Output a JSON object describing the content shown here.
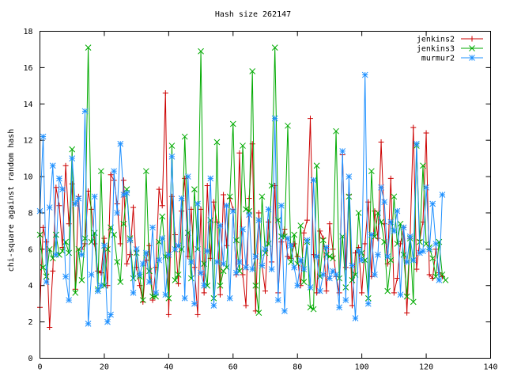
{
  "chart_data": {
    "type": "line",
    "title": "Hash size 262147",
    "xlabel": "",
    "ylabel": "chi-square against random hash",
    "xlim": [
      0,
      140
    ],
    "ylim": [
      0,
      18
    ],
    "xticks": [
      "0",
      "20",
      "40",
      "60",
      "80",
      "100",
      "120",
      "140"
    ],
    "yticks": [
      "0",
      "2",
      "4",
      "6",
      "8",
      "10",
      "12",
      "14",
      "16",
      "18"
    ],
    "grid": false,
    "legend_position": "top-right",
    "series": [
      {
        "name": "jenkins2",
        "color": "#cc0000",
        "marker": "plus",
        "values": [
          2.8,
          7.2,
          6.4,
          1.7,
          4.8,
          9.4,
          8.4,
          6.1,
          10.6,
          7.4,
          9.6,
          3.8,
          8.9,
          6.0,
          6.3,
          9.2,
          8.2,
          6.3,
          4.8,
          4.7,
          6.6,
          4.0,
          10.1,
          9.8,
          8.5,
          6.3,
          9.8,
          5.2,
          5.7,
          8.3,
          5.0,
          4.0,
          3.1,
          5.4,
          6.2,
          3.2,
          5.0,
          9.3,
          8.4,
          14.6,
          2.4,
          8.9,
          6.8,
          4.1,
          8.1,
          9.9,
          5.6,
          8.2,
          5.0,
          2.4,
          8.2,
          3.6,
          9.5,
          5.5,
          8.6,
          7.5,
          3.5,
          9.0,
          6.2,
          8.8,
          8.2,
          4.6,
          11.3,
          4.6,
          2.9,
          8.8,
          11.8,
          2.6,
          8.0,
          5.1,
          3.7,
          7.5,
          5.3,
          9.5,
          3.6,
          6.4,
          7.1,
          5.6,
          5.5,
          6.3,
          5.6,
          4.0,
          6.9,
          7.6,
          13.2,
          5.7,
          3.6,
          7.0,
          6.6,
          3.7,
          7.4,
          6.0,
          4.5,
          3.6,
          11.2,
          5.0,
          9.0,
          2.9,
          5.8,
          6.1,
          3.6,
          6.3,
          8.6,
          4.5,
          8.1,
          6.6,
          11.9,
          7.4,
          5.2,
          9.9,
          3.6,
          4.4,
          6.3,
          7.2,
          2.5,
          6.6,
          12.7,
          4.9,
          6.5,
          7.5,
          12.4,
          4.6,
          4.4,
          6.0,
          4.7,
          4.5
        ]
      },
      {
        "name": "jenkins3",
        "color": "#00aa00",
        "marker": "cross",
        "values": [
          6.8,
          5.0,
          4.5,
          6.0,
          5.5,
          6.8,
          5.7,
          5.9,
          6.4,
          5.8,
          11.5,
          3.6,
          6.0,
          4.3,
          6.6,
          17.1,
          6.4,
          6.9,
          3.8,
          10.3,
          4.0,
          6.0,
          7.2,
          6.8,
          5.3,
          4.2,
          7.4,
          9.3,
          6.6,
          4.4,
          5.8,
          4.5,
          3.2,
          10.3,
          4.8,
          3.4,
          3.4,
          6.4,
          7.8,
          5.6,
          3.3,
          11.7,
          4.3,
          4.6,
          6.0,
          12.2,
          6.9,
          4.4,
          9.3,
          6.0,
          16.9,
          5.2,
          4.0,
          7.6,
          3.3,
          11.9,
          4.0,
          4.8,
          5.0,
          8.9,
          12.9,
          6.5,
          4.8,
          11.7,
          8.2,
          8.1,
          15.8,
          4.0,
          2.5,
          8.9,
          5.8,
          6.3,
          9.5,
          17.1,
          7.6,
          6.7,
          6.7,
          12.8,
          5.3,
          6.8,
          5.2,
          7.3,
          4.2,
          6.4,
          2.8,
          2.7,
          10.6,
          4.5,
          6.5,
          5.7,
          5.6,
          5.5,
          12.5,
          4.4,
          6.7,
          3.9,
          8.9,
          4.3,
          4.6,
          8.0,
          5.8,
          5.4,
          3.3,
          10.3,
          6.7,
          8.0,
          7.5,
          6.4,
          3.7,
          5.4,
          8.9,
          6.3,
          7.4,
          5.7,
          3.4,
          6.6,
          3.1,
          11.7,
          6.4,
          10.6,
          6.3,
          6.1,
          5.5,
          4.5,
          6.4,
          4.6,
          4.3
        ]
      },
      {
        "name": "murmur2",
        "color": "#1e90ff",
        "marker": "star",
        "values": [
          8.1,
          12.2,
          4.2,
          8.3,
          10.6,
          5.7,
          9.9,
          9.3,
          4.5,
          3.2,
          11.0,
          8.5,
          8.8,
          5.7,
          13.6,
          1.9,
          4.6,
          8.9,
          3.7,
          4.0,
          6.2,
          2.0,
          2.4,
          10.3,
          8.0,
          11.8,
          9.0,
          9.1,
          6.5,
          3.6,
          6.0,
          4.6,
          5.2,
          5.8,
          4.2,
          7.2,
          3.6,
          5.4,
          6.6,
          3.5,
          5.7,
          11.1,
          6.0,
          6.2,
          8.8,
          3.3,
          10.0,
          5.3,
          3.0,
          8.5,
          4.7,
          4.0,
          5.9,
          9.9,
          2.9,
          5.3,
          7.3,
          5.2,
          8.4,
          3.3,
          8.1,
          4.7,
          5.3,
          7.1,
          5.0,
          7.9,
          4.9,
          5.6,
          7.6,
          5.1,
          6.0,
          8.2,
          4.9,
          13.2,
          3.2,
          8.4,
          2.6,
          6.6,
          6.2,
          5.0,
          4.0,
          5.4,
          4.9,
          6.5,
          3.9,
          9.8,
          5.6,
          3.7,
          4.6,
          6.1,
          4.4,
          4.8,
          4.6,
          2.8,
          11.4,
          3.2,
          10.0,
          5.1,
          2.2,
          5.9,
          5.4,
          15.6,
          3.0,
          6.8,
          4.6,
          5.7,
          9.4,
          8.6,
          5.6,
          7.5,
          7.0,
          8.1,
          3.5,
          7.2,
          5.3,
          6.7,
          5.4,
          11.8,
          5.8,
          5.9,
          9.4,
          6.0,
          8.5,
          6.3,
          4.3,
          9.0
        ]
      }
    ]
  }
}
